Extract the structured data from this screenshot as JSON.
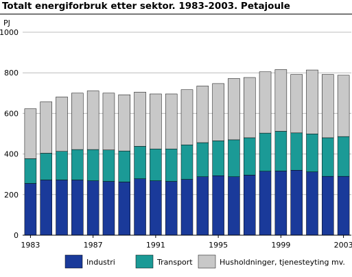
{
  "title": "Totalt energiforbruk etter sektor. 1983-2003. Petajoule",
  "chart_data": {
    "type": "bar",
    "stacked": true,
    "title": "Totalt energiforbruk etter sektor. 1983-2003. Petajoule",
    "ylabel": "PJ",
    "xlabel": "",
    "ylim": [
      0,
      1000
    ],
    "yticks": [
      0,
      200,
      400,
      600,
      800,
      1000
    ],
    "grid": true,
    "legend_position": "bottom",
    "categories": [
      "1983",
      "1984",
      "1985",
      "1986",
      "1987",
      "1988",
      "1989",
      "1990",
      "1991",
      "1992",
      "1993",
      "1994",
      "1995",
      "1996",
      "1997",
      "1998",
      "1999",
      "2000",
      "2001",
      "2002",
      "2003"
    ],
    "xtick_labels": [
      "1983",
      "1987",
      "1991",
      "1995",
      "1999",
      "2003"
    ],
    "series": [
      {
        "name": "Industri",
        "color": "#1a3a9a",
        "values": [
          255,
          272,
          272,
          272,
          268,
          265,
          262,
          278,
          268,
          265,
          275,
          288,
          293,
          288,
          296,
          315,
          316,
          320,
          312,
          290,
          290
        ]
      },
      {
        "name": "Transport",
        "color": "#1b9a96",
        "values": [
          122,
          132,
          141,
          150,
          154,
          155,
          153,
          160,
          157,
          160,
          170,
          168,
          172,
          182,
          184,
          188,
          196,
          184,
          187,
          190,
          196
        ]
      },
      {
        "name": "Husholdninger, tjenesteyting mv.",
        "color": "#c8c8c8",
        "values": [
          246,
          253,
          268,
          278,
          289,
          280,
          277,
          267,
          271,
          271,
          272,
          279,
          282,
          302,
          297,
          302,
          304,
          288,
          315,
          312,
          302
        ]
      }
    ]
  }
}
